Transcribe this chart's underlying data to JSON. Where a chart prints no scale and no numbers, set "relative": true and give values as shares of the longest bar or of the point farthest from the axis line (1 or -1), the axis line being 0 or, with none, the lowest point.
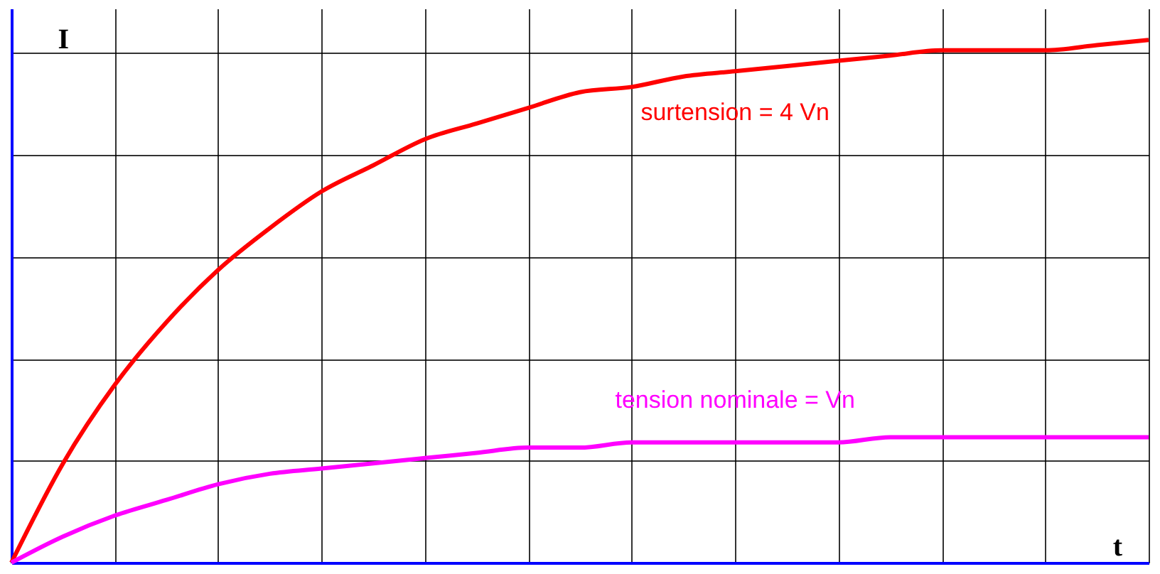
{
  "chart_data": {
    "type": "line",
    "relative": true,
    "grid": true,
    "marker": "none",
    "line_style": "solid",
    "categories": [
      null,
      null,
      null,
      null,
      null,
      null,
      null,
      null,
      null,
      null,
      null,
      null,
      null,
      null,
      null,
      null,
      null,
      null,
      null,
      null,
      null,
      null,
      null
    ],
    "series": [
      {
        "name": "surtension = 4 Vn",
        "color": "#ff0000",
        "values": [
          0,
          0.19,
          0.34,
          0.46,
          0.56,
          0.64,
          0.71,
          0.76,
          0.81,
          0.84,
          0.87,
          0.9,
          0.91,
          0.93,
          0.94,
          0.95,
          0.96,
          0.97,
          0.98,
          0.98,
          0.98,
          0.99,
          1
        ]
      },
      {
        "name": "tension nominale = Vn",
        "color": "#ff00ff",
        "values": [
          0,
          0.05,
          0.09,
          0.12,
          0.15,
          0.17,
          0.18,
          0.19,
          0.2,
          0.21,
          0.22,
          0.22,
          0.23,
          0.23,
          0.23,
          0.23,
          0.23,
          0.24,
          0.24,
          0.24,
          0.24,
          0.24,
          0.24
        ]
      }
    ],
    "annotations": [
      "I",
      "t"
    ]
  }
}
